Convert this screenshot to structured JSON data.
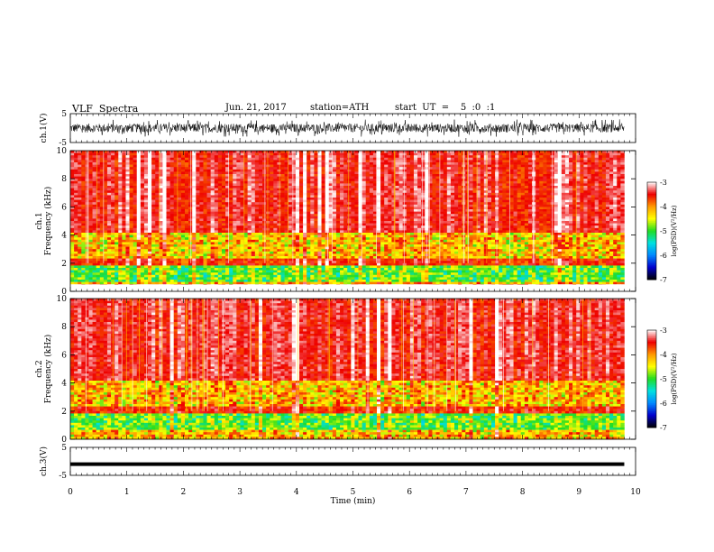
{
  "header": {
    "title": "VLF  Spectra",
    "date": "Jun. 21, 2017",
    "station": "station=ATH",
    "start": "start  UT  =    5  :0  :1"
  },
  "chart_data": [
    {
      "type": "line",
      "panel": "ch1-waveform",
      "ylabel": "ch.1(V)",
      "ylim": [
        -5,
        5
      ],
      "yticks": [
        "5",
        "-5"
      ],
      "xlim": [
        0,
        10
      ],
      "data_extent_min": [
        0,
        9.8
      ],
      "signal": "noisy broadband waveform, amplitude roughly between -3 and 3 V"
    },
    {
      "type": "heatmap",
      "panel": "ch1-spectrogram",
      "ylabel": "ch.1 Frequency  (kHz)",
      "ylim": [
        0,
        10
      ],
      "yticks": [
        "0",
        "2",
        "4",
        "6",
        "8",
        "10"
      ],
      "xlim": [
        0,
        10
      ],
      "colorbar_label": "log(PSD)(V²/Hz)",
      "colorbar_range": [
        -7,
        -3
      ],
      "colorbar_ticks": [
        "-3",
        "-4",
        "-5",
        "-6",
        "-7"
      ]
    },
    {
      "type": "heatmap",
      "panel": "ch2-spectrogram",
      "ylabel": "ch.2 Frequency  (kHz)",
      "ylim": [
        0,
        10
      ],
      "yticks": [
        "0",
        "2",
        "4",
        "6",
        "8",
        "10"
      ],
      "xlim": [
        0,
        10
      ],
      "colorbar_label": "log(PSD)(V²/Hz)",
      "colorbar_range": [
        -7,
        -3
      ],
      "colorbar_ticks": [
        "-3",
        "-4",
        "-5",
        "-6",
        "-7"
      ]
    },
    {
      "type": "line",
      "panel": "ch3-waveform",
      "ylabel": "ch.3(V)",
      "ylim": [
        -5,
        5
      ],
      "yticks": [
        "5",
        "-5"
      ],
      "xlim": [
        0,
        10
      ],
      "signal": "nearly flat trace at about -1 V"
    }
  ],
  "x_axis": {
    "label": "Time  (min)",
    "ticks": [
      "0",
      "1",
      "2",
      "3",
      "4",
      "5",
      "6",
      "7",
      "8",
      "9",
      "10"
    ]
  },
  "colors": {
    "colormap": [
      "#000000",
      "#0000cc",
      "#0088ff",
      "#00e0e0",
      "#22dd22",
      "#ffff00",
      "#ff9900",
      "#ee0000",
      "#ffffff"
    ]
  }
}
